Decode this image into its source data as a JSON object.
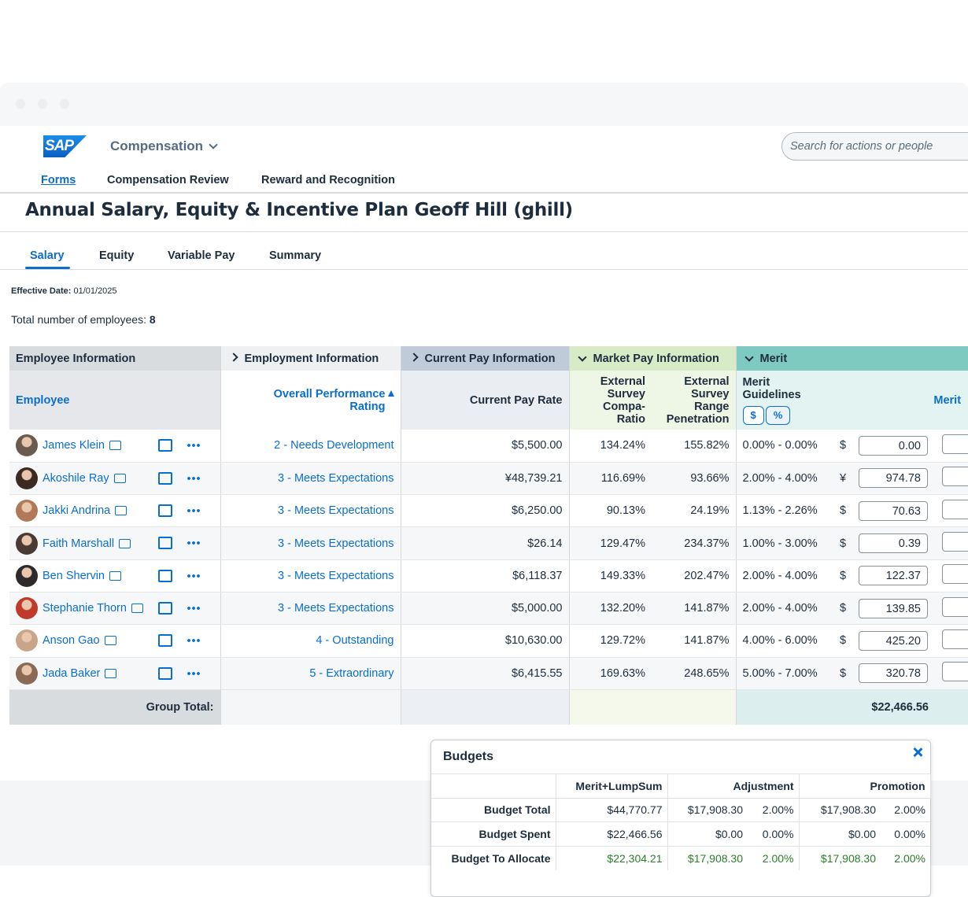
{
  "header": {
    "logo": "SAP",
    "app_menu": "Compensation",
    "search_placeholder": "Search for actions or people",
    "nav": [
      "Forms",
      "Compensation Review",
      "Reward and Recognition"
    ]
  },
  "page_title": "Annual Salary, Equity & Incentive Plan Geoff Hill (ghill)",
  "tabs": [
    "Salary",
    "Equity",
    "Variable Pay",
    "Summary"
  ],
  "effective_date": {
    "label": "Effective Date:",
    "value": "01/01/2025"
  },
  "employee_count": {
    "label": "Total number of employees:",
    "value": 8
  },
  "table": {
    "groups": [
      "Employee Information",
      "Employment Information",
      "Current Pay Information",
      "Market Pay Information",
      "Merit"
    ],
    "columns": [
      "Employee",
      "Overall Performance Rating",
      "Current Pay Rate",
      "External Survey Compa-Ratio",
      "External Survey Range Penetration",
      "Merit Guidelines",
      "Merit"
    ],
    "guideline_toggle": [
      "$",
      "%"
    ],
    "rows": [
      [
        "James Klein",
        "2 - Needs Development",
        "$5,500.00",
        "134.24%",
        "155.82%",
        "0.00% - 0.00%",
        "$",
        "0.00"
      ],
      [
        "Akoshile Ray",
        "3 - Meets Expectations",
        "¥48,739.21",
        "116.69%",
        "93.66%",
        "2.00% - 4.00%",
        "¥",
        "974.78"
      ],
      [
        "Jakki Andrina",
        "3 - Meets Expectations",
        "$6,250.00",
        "90.13%",
        "24.19%",
        "1.13% - 2.26%",
        "$",
        "70.63"
      ],
      [
        "Faith Marshall",
        "3 - Meets Expectations",
        "$26.14",
        "129.47%",
        "234.37%",
        "1.00% - 3.00%",
        "$",
        "0.39"
      ],
      [
        "Ben Shervin",
        "3 - Meets Expectations",
        "$6,118.37",
        "149.33%",
        "202.47%",
        "2.00% - 4.00%",
        "$",
        "122.37"
      ],
      [
        "Stephanie Thorn",
        "3 - Meets Expectations",
        "$5,000.00",
        "132.20%",
        "141.87%",
        "2.00% - 4.00%",
        "$",
        "139.85"
      ],
      [
        "Anson Gao",
        "4 - Outstanding",
        "$10,630.00",
        "129.72%",
        "141.87%",
        "4.00% - 6.00%",
        "$",
        "425.20"
      ],
      [
        "Jada Baker",
        "5 - Extraordinary",
        "$6,415.55",
        "169.63%",
        "248.65%",
        "5.00% - 7.00%",
        "$",
        "320.78"
      ]
    ],
    "total_label": "Group Total:",
    "total": "$22,466.56"
  },
  "budgets": {
    "title": "Budgets",
    "columns": [
      "Merit+LumpSum",
      "Adjustment",
      "Promotion"
    ],
    "rows": [
      [
        "Budget Total",
        "$44,770.77",
        "$17,908.30",
        "2.00%",
        "$17,908.30",
        "2.00%"
      ],
      [
        "Budget Spent",
        "$22,466.56",
        "$0.00",
        "0.00%",
        "$0.00",
        "0.00%"
      ],
      [
        "Budget To Allocate",
        "$22,304.21",
        "$17,908.30",
        "2.00%",
        "$17,908.30",
        "2.00%"
      ]
    ]
  }
}
